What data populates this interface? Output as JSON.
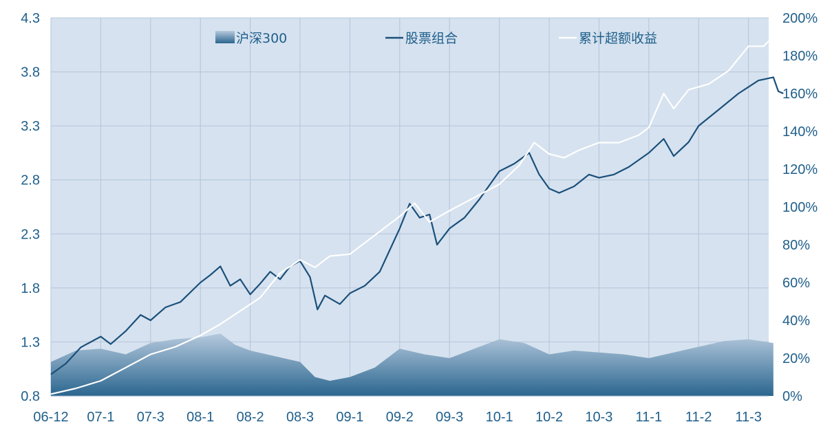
{
  "chart_data": {
    "type": "line",
    "legend_position": "top",
    "grid": true,
    "x_ticks": [
      "06-12",
      "07-1",
      "07-3",
      "08-1",
      "08-2",
      "08-3",
      "09-1",
      "09-2",
      "09-3",
      "10-1",
      "10-2",
      "10-3",
      "11-1",
      "11-2",
      "11-3"
    ],
    "y_left_ticks": [
      "4.3",
      "3.8",
      "3.3",
      "2.8",
      "2.3",
      "1.8",
      "1.3",
      "0.8"
    ],
    "y_right_ticks": [
      "200%",
      "180%",
      "160%",
      "140%",
      "120%",
      "100%",
      "80%",
      "60%",
      "40%",
      "20%",
      "0%"
    ],
    "y_left_range": [
      0.8,
      4.3
    ],
    "y_right_range": [
      0,
      2.0
    ],
    "colors": {
      "plot_bg": "#d6e2ef",
      "grid": "#b4c4db",
      "portfolio": "#1a4f7a",
      "excess": "#ffffff",
      "area_top": "#b5c9dd",
      "area_bottom": "#2b668f",
      "tick_text": "#1f5f8b"
    },
    "series": [
      {
        "name": "沪深300",
        "kind": "area",
        "axis": "right",
        "points": [
          [
            0,
            0.18
          ],
          [
            0.5,
            0.24
          ],
          [
            1,
            0.25
          ],
          [
            1.5,
            0.22
          ],
          [
            2,
            0.28
          ],
          [
            2.5,
            0.3
          ],
          [
            3,
            0.31
          ],
          [
            3.4,
            0.33
          ],
          [
            3.7,
            0.27
          ],
          [
            4,
            0.24
          ],
          [
            4.5,
            0.21
          ],
          [
            5,
            0.18
          ],
          [
            5.3,
            0.1
          ],
          [
            5.6,
            0.08
          ],
          [
            6,
            0.1
          ],
          [
            6.5,
            0.15
          ],
          [
            7,
            0.25
          ],
          [
            7.5,
            0.22
          ],
          [
            8,
            0.2
          ],
          [
            8.5,
            0.25
          ],
          [
            9,
            0.3
          ],
          [
            9.5,
            0.28
          ],
          [
            10,
            0.22
          ],
          [
            10.5,
            0.24
          ],
          [
            11,
            0.23
          ],
          [
            11.5,
            0.22
          ],
          [
            12,
            0.2
          ],
          [
            12.5,
            0.23
          ],
          [
            13,
            0.26
          ],
          [
            13.5,
            0.29
          ],
          [
            14,
            0.3
          ],
          [
            14.5,
            0.28
          ]
        ]
      },
      {
        "name": "股票组合",
        "kind": "line",
        "axis": "left",
        "points": [
          [
            0,
            1.0
          ],
          [
            0.3,
            1.1
          ],
          [
            0.6,
            1.25
          ],
          [
            1,
            1.35
          ],
          [
            1.2,
            1.28
          ],
          [
            1.5,
            1.4
          ],
          [
            1.8,
            1.55
          ],
          [
            2,
            1.5
          ],
          [
            2.3,
            1.62
          ],
          [
            2.6,
            1.67
          ],
          [
            3,
            1.85
          ],
          [
            3.2,
            1.92
          ],
          [
            3.4,
            2.0
          ],
          [
            3.6,
            1.82
          ],
          [
            3.8,
            1.88
          ],
          [
            4,
            1.74
          ],
          [
            4.2,
            1.84
          ],
          [
            4.4,
            1.95
          ],
          [
            4.6,
            1.88
          ],
          [
            4.8,
            2.0
          ],
          [
            5,
            2.05
          ],
          [
            5.2,
            1.9
          ],
          [
            5.35,
            1.6
          ],
          [
            5.5,
            1.73
          ],
          [
            5.8,
            1.65
          ],
          [
            6,
            1.75
          ],
          [
            6.3,
            1.82
          ],
          [
            6.6,
            1.95
          ],
          [
            7,
            2.35
          ],
          [
            7.2,
            2.58
          ],
          [
            7.4,
            2.45
          ],
          [
            7.6,
            2.48
          ],
          [
            7.75,
            2.2
          ],
          [
            8,
            2.35
          ],
          [
            8.3,
            2.45
          ],
          [
            8.6,
            2.62
          ],
          [
            9,
            2.88
          ],
          [
            9.3,
            2.95
          ],
          [
            9.6,
            3.05
          ],
          [
            9.8,
            2.85
          ],
          [
            10,
            2.72
          ],
          [
            10.2,
            2.68
          ],
          [
            10.5,
            2.74
          ],
          [
            10.8,
            2.85
          ],
          [
            11,
            2.82
          ],
          [
            11.3,
            2.85
          ],
          [
            11.6,
            2.92
          ],
          [
            12,
            3.05
          ],
          [
            12.3,
            3.18
          ],
          [
            12.5,
            3.02
          ],
          [
            12.8,
            3.15
          ],
          [
            13,
            3.3
          ],
          [
            13.4,
            3.45
          ],
          [
            13.8,
            3.6
          ],
          [
            14.2,
            3.72
          ],
          [
            14.5,
            3.75
          ],
          [
            14.6,
            3.62
          ],
          [
            14.7,
            3.6
          ]
        ]
      },
      {
        "name": "累计超额收益",
        "kind": "line",
        "axis": "right",
        "points": [
          [
            0,
            0.01
          ],
          [
            0.5,
            0.04
          ],
          [
            1,
            0.08
          ],
          [
            1.5,
            0.15
          ],
          [
            2,
            0.22
          ],
          [
            2.5,
            0.26
          ],
          [
            3,
            0.32
          ],
          [
            3.4,
            0.38
          ],
          [
            3.8,
            0.45
          ],
          [
            4.2,
            0.52
          ],
          [
            4.6,
            0.65
          ],
          [
            5,
            0.72
          ],
          [
            5.3,
            0.68
          ],
          [
            5.6,
            0.74
          ],
          [
            6,
            0.75
          ],
          [
            6.5,
            0.85
          ],
          [
            7,
            0.95
          ],
          [
            7.3,
            1.02
          ],
          [
            7.6,
            0.92
          ],
          [
            8,
            0.98
          ],
          [
            8.5,
            1.05
          ],
          [
            9,
            1.12
          ],
          [
            9.4,
            1.22
          ],
          [
            9.7,
            1.34
          ],
          [
            10,
            1.28
          ],
          [
            10.3,
            1.26
          ],
          [
            10.6,
            1.3
          ],
          [
            11,
            1.34
          ],
          [
            11.4,
            1.34
          ],
          [
            11.8,
            1.38
          ],
          [
            12,
            1.42
          ],
          [
            12.3,
            1.6
          ],
          [
            12.5,
            1.52
          ],
          [
            12.8,
            1.62
          ],
          [
            13.2,
            1.65
          ],
          [
            13.6,
            1.72
          ],
          [
            14,
            1.85
          ],
          [
            14.3,
            1.85
          ],
          [
            14.5,
            1.9
          ],
          [
            14.7,
            1.8
          ]
        ]
      }
    ]
  }
}
